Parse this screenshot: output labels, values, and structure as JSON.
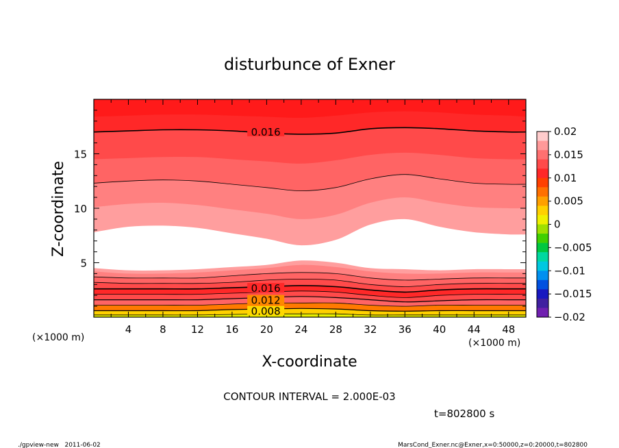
{
  "chart_data": {
    "type": "heatmap",
    "title": "disturbunce of Exner",
    "xlabel": "X-coordinate",
    "ylabel": "Z-coordinate",
    "x_unit_left": "(×1000 m)",
    "x_unit_right": "(×1000 m)",
    "xlim": [
      0,
      50
    ],
    "ylim": [
      0,
      20
    ],
    "x_ticks": [
      4,
      8,
      12,
      16,
      20,
      24,
      28,
      32,
      36,
      40,
      44,
      48
    ],
    "y_ticks": [
      5,
      10,
      15
    ],
    "contour_interval_text": "CONTOUR INTERVAL = 2.000E-03",
    "time_text": "t=802800 s",
    "footer_left": "./gpview-new   2011-06-02",
    "footer_right": "MarsCond_Exner.nc@Exner,x=0:50000,z=0:20000,t=802800",
    "contour_labels": [
      {
        "text": "0.016",
        "x": 18.0,
        "z": 17.05
      },
      {
        "text": "0.016",
        "x": 18.0,
        "z": 2.7
      },
      {
        "text": "0.012",
        "x": 18.0,
        "z": 1.6
      },
      {
        "text": "0.008",
        "x": 18.0,
        "z": 0.6
      }
    ],
    "surface_profiles": {
      "x": [
        0,
        4,
        8,
        12,
        16,
        20,
        24,
        28,
        32,
        36,
        40,
        44,
        48,
        50
      ],
      "z_0020": [
        19.8,
        19.8,
        19.9,
        19.8,
        19.8,
        19.7,
        19.6,
        19.8,
        20.0,
        20.1,
        20.0,
        19.9,
        19.8,
        19.8
      ],
      "z_0018": [
        18.4,
        18.5,
        18.6,
        18.6,
        18.5,
        18.4,
        18.3,
        18.5,
        18.8,
        18.9,
        18.8,
        18.6,
        18.5,
        18.4
      ],
      "z_0016": [
        17.0,
        17.1,
        17.2,
        17.2,
        17.1,
        16.9,
        16.8,
        16.9,
        17.3,
        17.4,
        17.3,
        17.1,
        17.0,
        17.0
      ],
      "z_0014": [
        14.5,
        14.6,
        14.7,
        14.7,
        14.5,
        14.3,
        14.1,
        14.4,
        14.9,
        15.1,
        14.9,
        14.6,
        14.5,
        14.5
      ],
      "z_0012": [
        12.3,
        12.5,
        12.6,
        12.5,
        12.2,
        11.9,
        11.6,
        11.9,
        12.7,
        13.1,
        12.7,
        12.3,
        12.2,
        12.2
      ],
      "z_0010": [
        10.1,
        10.4,
        10.5,
        10.3,
        9.9,
        9.5,
        9.0,
        9.4,
        10.5,
        11.0,
        10.5,
        10.1,
        10.0,
        10.0
      ],
      "z_0008": [
        7.8,
        8.3,
        8.4,
        8.2,
        7.7,
        7.2,
        6.6,
        7.1,
        8.5,
        9.0,
        8.3,
        7.8,
        7.6,
        7.6
      ],
      "z_0008b": [
        4.5,
        4.3,
        4.3,
        4.4,
        4.6,
        4.8,
        5.2,
        5.0,
        4.5,
        4.4,
        4.3,
        4.4,
        4.4,
        4.4
      ],
      "z_0010b": [
        4.2,
        4.0,
        4.0,
        4.1,
        4.3,
        4.5,
        4.8,
        4.6,
        4.2,
        4.0,
        4.0,
        4.1,
        4.1,
        4.1
      ],
      "z_0012b": [
        3.7,
        3.6,
        3.6,
        3.6,
        3.8,
        4.0,
        4.1,
        4.0,
        3.6,
        3.4,
        3.5,
        3.6,
        3.6,
        3.6
      ],
      "z_0014b": [
        3.2,
        3.1,
        3.1,
        3.1,
        3.2,
        3.4,
        3.5,
        3.4,
        3.0,
        2.8,
        3.0,
        3.1,
        3.1,
        3.1
      ],
      "z_0016b": [
        2.6,
        2.6,
        2.6,
        2.6,
        2.7,
        2.8,
        2.9,
        2.8,
        2.5,
        2.3,
        2.5,
        2.6,
        2.6,
        2.6
      ],
      "z_0014c": [
        2.1,
        2.1,
        2.1,
        2.1,
        2.2,
        2.3,
        2.4,
        2.3,
        2.0,
        1.8,
        2.0,
        2.1,
        2.1,
        2.1
      ],
      "z_0012c": [
        1.6,
        1.6,
        1.6,
        1.6,
        1.7,
        1.8,
        1.9,
        1.8,
        1.6,
        1.4,
        1.5,
        1.6,
        1.6,
        1.6
      ],
      "z_0010c": [
        1.1,
        1.1,
        1.1,
        1.1,
        1.2,
        1.3,
        1.3,
        1.3,
        1.1,
        1.0,
        1.1,
        1.1,
        1.1,
        1.1
      ],
      "z_0008c": [
        0.6,
        0.6,
        0.6,
        0.6,
        0.7,
        0.75,
        0.8,
        0.75,
        0.6,
        0.55,
        0.6,
        0.6,
        0.6,
        0.6
      ],
      "z_0006c": [
        0.2,
        0.2,
        0.2,
        0.2,
        0.25,
        0.3,
        0.3,
        0.3,
        0.2,
        0.2,
        0.2,
        0.2,
        0.2,
        0.2
      ]
    },
    "colorbar": {
      "labels": [
        "0.02",
        "0.015",
        "0.01",
        "0.005",
        "0",
        "−0.005",
        "−0.01",
        "−0.015",
        "−0.02"
      ],
      "levels": [
        0.02,
        0.015,
        0.01,
        0.005,
        0,
        -0.005,
        -0.01,
        -0.015,
        -0.02
      ],
      "colors_top_to_bottom": [
        "#ffcccc",
        "#ff9999",
        "#ff7070",
        "#ff4a4a",
        "#ff2828",
        "#ff4000",
        "#ff7000",
        "#ffa000",
        "#ffd000",
        "#f0f000",
        "#a0e000",
        "#40d000",
        "#00c840",
        "#00d8a0",
        "#00c8e0",
        "#0090f0",
        "#0050e0",
        "#1818c0",
        "#4020a0",
        "#7020b0"
      ]
    },
    "band_colors": {
      "ge_0018": "#ff1a1a",
      "b_0016_0018": "#ff2828",
      "b_0014_0016": "#ff4a4a",
      "b_0012_0014": "#ff6464",
      "b_0010_0012": "#ff8080",
      "b_0008_0010": "#ff9e9e",
      "lt_0008": "#ffffff",
      "low_0006_0008": "#ffd000",
      "low_lt_0006": "#e8f000"
    }
  }
}
